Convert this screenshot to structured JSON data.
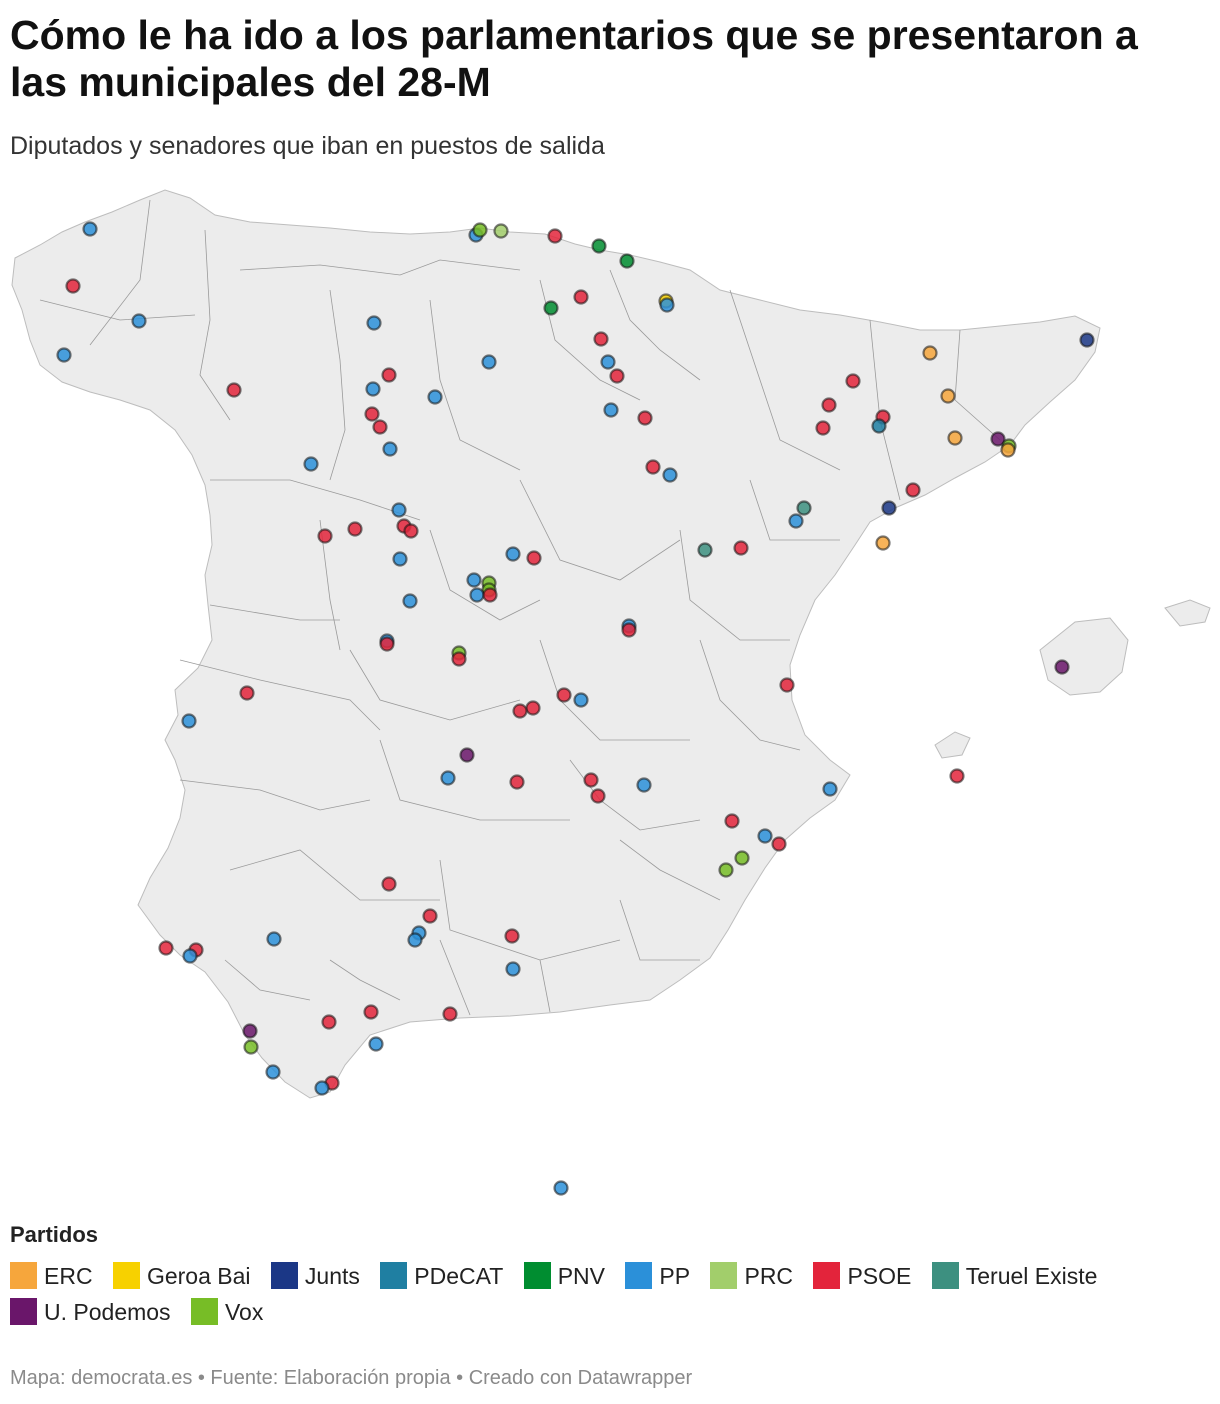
{
  "title": "Cómo le ha ido a los parlamentarios que se presentaron a las municipales del 28-M",
  "subtitle": "Diputados y senadores que iban en puestos de salida",
  "legend_title": "Partidos",
  "parties": [
    {
      "id": "erc",
      "name": "ERC",
      "color": "#f6a63c"
    },
    {
      "id": "geroa",
      "name": "Geroa Bai",
      "color": "#f7d100"
    },
    {
      "id": "junts",
      "name": "Junts",
      "color": "#1b3786"
    },
    {
      "id": "pdecat",
      "name": "PDeCAT",
      "color": "#1f7fa2"
    },
    {
      "id": "pnv",
      "name": "PNV",
      "color": "#008d30"
    },
    {
      "id": "pp",
      "name": "PP",
      "color": "#2b90d9"
    },
    {
      "id": "prc",
      "name": "PRC",
      "color": "#a2ce6b"
    },
    {
      "id": "psoe",
      "name": "PSOE",
      "color": "#e3243b"
    },
    {
      "id": "teruel",
      "name": "Teruel Existe",
      "color": "#3d9080"
    },
    {
      "id": "podemos",
      "name": "U. Podemos",
      "color": "#6a166a"
    },
    {
      "id": "vox",
      "name": "Vox",
      "color": "#77bd26"
    }
  ],
  "footer": "Mapa: democrata.es • Fuente: Elaboración propia • Creado con Datawrapper"
}
